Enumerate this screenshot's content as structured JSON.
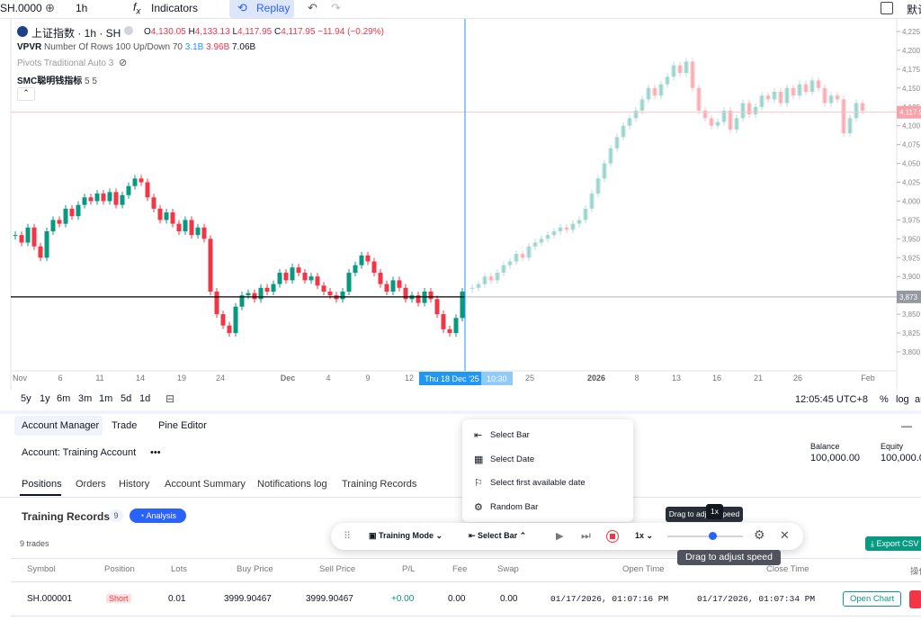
{
  "toolbar": {
    "symbol": "SH.0000",
    "interval": "1h",
    "indicators": "Indicators",
    "replay": "Replay",
    "layout_name": "默认"
  },
  "legend": {
    "title": "上证指数 · 1h · SH",
    "open_label": "O",
    "open": "4,130.05",
    "high_label": "H",
    "high": "4,133.13",
    "low_label": "L",
    "low": "4,117.95",
    "close_label": "C",
    "close": "4,117.95",
    "change": "−11.94 (−0.29%)"
  },
  "indicators": [
    {
      "name": "VPVR",
      "params": "Number Of Rows 100 Up/Down 70",
      "up": "3.1B",
      "down": "3.96B",
      "total": "7.06B"
    },
    {
      "name": "Pivots Traditional Auto 3"
    },
    {
      "name": "SMC聪明钱指标",
      "params": "5 5"
    }
  ],
  "chart": {
    "history_closes": [
      3955,
      3945,
      3965,
      3940,
      3925,
      3960,
      3975,
      3970,
      3990,
      3980,
      3995,
      4005,
      4000,
      4010,
      4000,
      4012,
      3995,
      4008,
      4020,
      4030,
      4025,
      4005,
      3990,
      3975,
      3985,
      3970,
      3960,
      3975,
      3955,
      3965,
      3950,
      3880,
      3850,
      3835,
      3825,
      3860,
      3875,
      3878,
      3870,
      3885,
      3880,
      3890,
      3905,
      3895,
      3912,
      3905,
      3895,
      3900,
      3888,
      3880,
      3875,
      3870,
      3880,
      3905,
      3915,
      3928,
      3920,
      3905,
      3890,
      3880,
      3895,
      3885,
      3870,
      3875,
      3865,
      3880,
      3870,
      3850,
      3830,
      3825,
      3845,
      3880
    ],
    "future_closes": [
      3885,
      3890,
      3900,
      3895,
      3905,
      3915,
      3920,
      3930,
      3925,
      3940,
      3945,
      3950,
      3955,
      3960,
      3965,
      3962,
      3970,
      3975,
      3990,
      4010,
      4030,
      4050,
      4070,
      4085,
      4100,
      4110,
      4120,
      4135,
      4150,
      4140,
      4155,
      4165,
      4180,
      4170,
      4185,
      4150,
      4120,
      4110,
      4100,
      4105,
      4120,
      4095,
      4110,
      4130,
      4115,
      4125,
      4140,
      4135,
      4145,
      4130,
      4150,
      4140,
      4155,
      4145,
      4160,
      4150,
      4130,
      4140,
      4135,
      4090,
      4110,
      4130,
      4120
    ],
    "price_ticks": [
      {
        "value": 4225,
        "label": "4,225"
      },
      {
        "value": 4200,
        "label": "4,200"
      },
      {
        "value": 4175,
        "label": "4,175"
      },
      {
        "value": 4150,
        "label": "4,150"
      },
      {
        "value": 4125,
        "label": "4,125"
      },
      {
        "value": 4100,
        "label": "4,100"
      },
      {
        "value": 4075,
        "label": "4,075"
      },
      {
        "value": 4050,
        "label": "4,050"
      },
      {
        "value": 4025,
        "label": "4,025"
      },
      {
        "value": 4000,
        "label": "4,000"
      },
      {
        "value": 3975,
        "label": "3,975"
      },
      {
        "value": 3950,
        "label": "3,950"
      },
      {
        "value": 3925,
        "label": "3,925"
      },
      {
        "value": 3900,
        "label": "3,900"
      },
      {
        "value": 3875,
        "label": "3,875"
      },
      {
        "value": 3850,
        "label": "3,850"
      },
      {
        "value": 3825,
        "label": "3,825"
      },
      {
        "value": 3800,
        "label": "3,800"
      }
    ],
    "last_price": {
      "value": 4117.95,
      "label": "4,117.95"
    },
    "crosshair_price": {
      "value": 3873,
      "label": "3,873"
    },
    "time_labels": [
      "Nov",
      "6",
      "11",
      "14",
      "19",
      "24",
      "Dec",
      "4",
      "9",
      "12",
      "25",
      "2026",
      "8",
      "13",
      "16",
      "21",
      "26",
      "Feb"
    ],
    "replay_label": "Thu 18 Dec '25",
    "replay_time": "10:30"
  },
  "range_bar": {
    "ranges": [
      "5y",
      "1y",
      "6m",
      "3m",
      "1m",
      "5d",
      "1d"
    ],
    "clock": "12:05:45 UTC+8",
    "percent": "%",
    "log": "log",
    "auto": "auto"
  },
  "panel": {
    "tabs": [
      "Account Manager",
      "Trade",
      "Pine Editor"
    ],
    "account": "Account: Training Account",
    "more": "•••",
    "balance_label": "Balance",
    "balance": "100,000.00",
    "equity_label": "Equity",
    "equity": "100,000.00",
    "subtabs": [
      "Positions",
      "Orders",
      "History",
      "Account Summary",
      "Notifications log",
      "Training Records"
    ],
    "section_title": "Training Records",
    "count": "9",
    "analysis": "Analysis",
    "trades": "9 trades",
    "export": "Export CSV",
    "columns": [
      "Symbol",
      "Position",
      "Lots",
      "Buy Price",
      "Sell Price",
      "P/L",
      "Fee",
      "Swap",
      "Open Time",
      "Close Time",
      "操作"
    ],
    "rows": [
      [
        "SH.000001",
        "Short",
        "0.01",
        "3999.90467",
        "3999.90467",
        "+0.00",
        "0.00",
        "0.00",
        "01/17/2026, 01:07:16 PM",
        "01/17/2026, 01:07:34 PM",
        "Open Chart"
      ]
    ]
  },
  "menu": [
    "Select Bar",
    "Select Date",
    "Select first available date",
    "Random Bar"
  ],
  "replay_bar": {
    "mode": "Training Mode",
    "select": "Select Bar",
    "speed": "1x",
    "speed_badge": "1x",
    "tooltip": "Drag to adjust speed"
  }
}
